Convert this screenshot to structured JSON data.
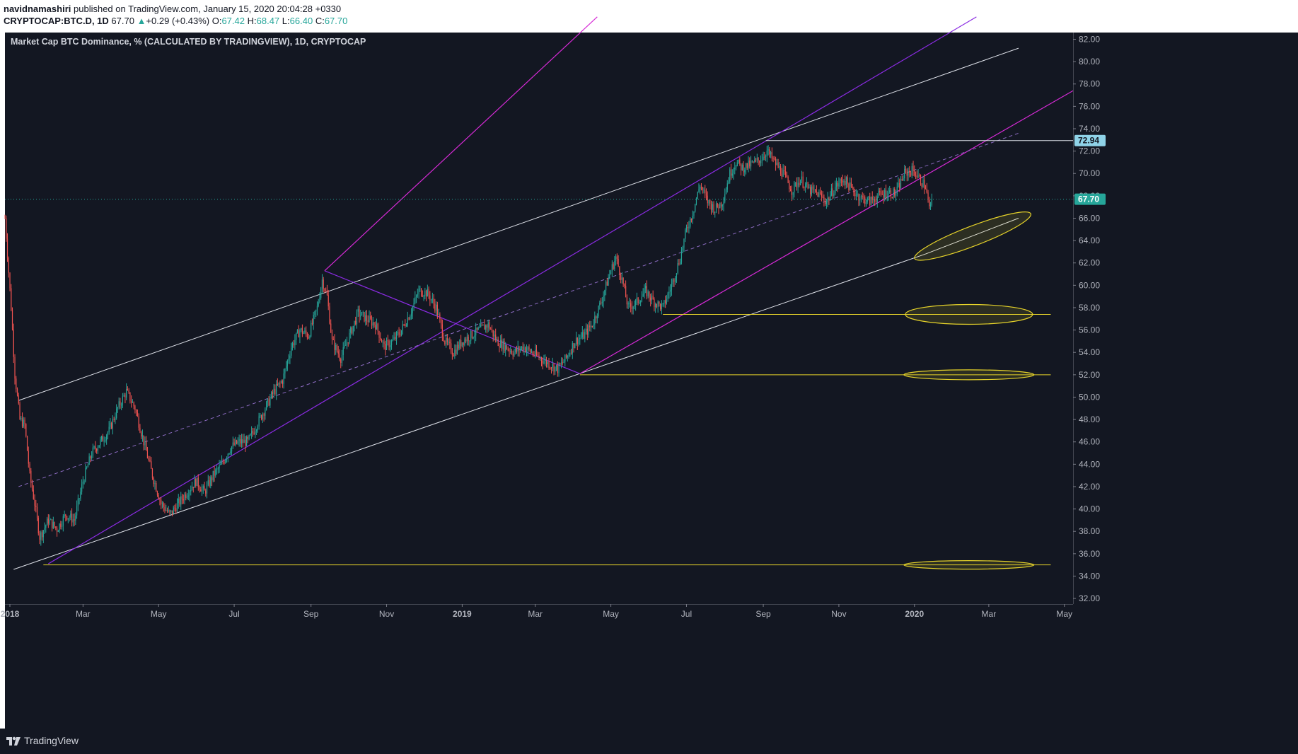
{
  "header": {
    "author": "navidnamashiri",
    "published_text": "published on TradingView.com, January 15, 2020 20:04:28 +0330",
    "symbol": "CRYPTOCAP:BTC.D, 1D",
    "last": "67.70",
    "change": "+0.29 (+0.43%)",
    "up_arrow": "▲",
    "o_label": "O:",
    "o_value": "67.42",
    "h_label": "H:",
    "h_value": "68.47",
    "l_label": "L:",
    "l_value": "66.40",
    "c_label": "C:",
    "c_value": "67.70"
  },
  "footer": {
    "brand": "TradingView",
    "logo_icon": "tradingview-logo-icon"
  },
  "colors": {
    "background": "#131722",
    "up": "#26a69a",
    "down": "#ef5350",
    "axis_text": "#b2b5be",
    "trend_white": "#e0e3eb",
    "pitchfork_magenta": "#d62ad6",
    "pitchfork_purple": "#8a2be2",
    "yellow": "#e6d32a",
    "price_line": "#26a69a",
    "label_high_bg": "#8fd3e8"
  },
  "chart_data": {
    "type": "candlestick",
    "title": "Market Cap BTC Dominance, % (CALCULATED BY TRADINGVIEW), 1D, CRYPTOCAP",
    "x_tick_labels": [
      "2018",
      "Mar",
      "May",
      "Jul",
      "Sep",
      "Nov",
      "2019",
      "Mar",
      "May",
      "Jul",
      "Sep",
      "Nov",
      "2020",
      "Mar",
      "May"
    ],
    "x_tick_dates": [
      "2018-01-01",
      "2018-03-01",
      "2018-05-01",
      "2018-07-01",
      "2018-09-01",
      "2018-11-01",
      "2019-01-01",
      "2019-03-01",
      "2019-05-01",
      "2019-07-01",
      "2019-09-01",
      "2019-11-01",
      "2020-01-01",
      "2020-03-01",
      "2020-05-01"
    ],
    "y_tick_labels": [
      "82.00",
      "80.00",
      "78.00",
      "76.00",
      "74.00",
      "72.00",
      "70.00",
      "68.00",
      "66.00",
      "64.00",
      "62.00",
      "60.00",
      "58.00",
      "56.00",
      "54.00",
      "52.00",
      "50.00",
      "48.00",
      "46.00",
      "44.00",
      "42.00",
      "40.00",
      "38.00",
      "36.00",
      "34.00",
      "32.00"
    ],
    "ylim": [
      31.5,
      82.6
    ],
    "xlim": [
      "2017-12-28",
      "2020-05-08"
    ],
    "close_path": [
      [
        "2017-12-28",
        66.0
      ],
      [
        "2018-01-02",
        58.0
      ],
      [
        "2018-01-05",
        52.0
      ],
      [
        "2018-01-09",
        48.0
      ],
      [
        "2018-01-13",
        47.5
      ],
      [
        "2018-01-17",
        43.0
      ],
      [
        "2018-01-21",
        40.5
      ],
      [
        "2018-01-25",
        37.5
      ],
      [
        "2018-02-01",
        39.0
      ],
      [
        "2018-02-08",
        38.2
      ],
      [
        "2018-02-15",
        39.5
      ],
      [
        "2018-02-22",
        39.0
      ],
      [
        "2018-03-01",
        42.5
      ],
      [
        "2018-03-08",
        45.0
      ],
      [
        "2018-03-15",
        46.0
      ],
      [
        "2018-03-22",
        47.0
      ],
      [
        "2018-03-29",
        49.0
      ],
      [
        "2018-04-05",
        50.5
      ],
      [
        "2018-04-12",
        49.0
      ],
      [
        "2018-04-19",
        46.0
      ],
      [
        "2018-04-26",
        43.0
      ],
      [
        "2018-05-03",
        40.5
      ],
      [
        "2018-05-10",
        39.5
      ],
      [
        "2018-05-17",
        40.5
      ],
      [
        "2018-05-24",
        41.5
      ],
      [
        "2018-05-31",
        42.5
      ],
      [
        "2018-06-07",
        41.5
      ],
      [
        "2018-06-14",
        43.0
      ],
      [
        "2018-06-21",
        44.0
      ],
      [
        "2018-06-28",
        45.5
      ],
      [
        "2018-07-05",
        46.0
      ],
      [
        "2018-07-12",
        46.0
      ],
      [
        "2018-07-19",
        47.5
      ],
      [
        "2018-07-26",
        49.0
      ],
      [
        "2018-08-02",
        50.5
      ],
      [
        "2018-08-09",
        51.5
      ],
      [
        "2018-08-16",
        54.5
      ],
      [
        "2018-08-23",
        56.0
      ],
      [
        "2018-08-30",
        55.5
      ],
      [
        "2018-09-06",
        58.0
      ],
      [
        "2018-09-10",
        60.5
      ],
      [
        "2018-09-14",
        59.0
      ],
      [
        "2018-09-18",
        55.0
      ],
      [
        "2018-09-25",
        53.5
      ],
      [
        "2018-10-02",
        55.5
      ],
      [
        "2018-10-09",
        57.5
      ],
      [
        "2018-10-16",
        57.0
      ],
      [
        "2018-10-23",
        56.5
      ],
      [
        "2018-10-30",
        54.5
      ],
      [
        "2018-11-06",
        55.0
      ],
      [
        "2018-11-13",
        56.0
      ],
      [
        "2018-11-20",
        57.5
      ],
      [
        "2018-11-27",
        59.5
      ],
      [
        "2018-12-04",
        59.3
      ],
      [
        "2018-12-11",
        58.0
      ],
      [
        "2018-12-18",
        55.0
      ],
      [
        "2018-12-25",
        54.0
      ],
      [
        "2019-01-01",
        55.0
      ],
      [
        "2019-01-08",
        55.5
      ],
      [
        "2019-01-15",
        56.0
      ],
      [
        "2019-01-22",
        56.5
      ],
      [
        "2019-01-29",
        55.0
      ],
      [
        "2019-02-05",
        54.5
      ],
      [
        "2019-02-12",
        54.0
      ],
      [
        "2019-02-19",
        54.5
      ],
      [
        "2019-02-26",
        54.0
      ],
      [
        "2019-03-05",
        53.5
      ],
      [
        "2019-03-12",
        53.0
      ],
      [
        "2019-03-19",
        52.5
      ],
      [
        "2019-03-26",
        53.5
      ],
      [
        "2019-04-02",
        55.0
      ],
      [
        "2019-04-09",
        55.5
      ],
      [
        "2019-04-16",
        56.5
      ],
      [
        "2019-04-23",
        58.5
      ],
      [
        "2019-04-30",
        61.0
      ],
      [
        "2019-05-05",
        62.5
      ],
      [
        "2019-05-10",
        60.5
      ],
      [
        "2019-05-15",
        58.0
      ],
      [
        "2019-05-22",
        58.5
      ],
      [
        "2019-05-29",
        59.5
      ],
      [
        "2019-06-05",
        58.5
      ],
      [
        "2019-06-12",
        58.0
      ],
      [
        "2019-06-19",
        60.0
      ],
      [
        "2019-06-26",
        62.5
      ],
      [
        "2019-07-01",
        65.0
      ],
      [
        "2019-07-06",
        66.5
      ],
      [
        "2019-07-12",
        69.0
      ],
      [
        "2019-07-18",
        67.5
      ],
      [
        "2019-07-24",
        66.8
      ],
      [
        "2019-07-30",
        67.5
      ],
      [
        "2019-08-05",
        70.0
      ],
      [
        "2019-08-10",
        71.0
      ],
      [
        "2019-08-15",
        70.5
      ],
      [
        "2019-08-22",
        70.8
      ],
      [
        "2019-08-29",
        71.2
      ],
      [
        "2019-09-04",
        72.0
      ],
      [
        "2019-09-10",
        71.0
      ],
      [
        "2019-09-17",
        70.0
      ],
      [
        "2019-09-24",
        68.5
      ],
      [
        "2019-10-01",
        69.5
      ],
      [
        "2019-10-08",
        68.5
      ],
      [
        "2019-10-15",
        68.2
      ],
      [
        "2019-10-22",
        67.5
      ],
      [
        "2019-10-29",
        68.8
      ],
      [
        "2019-11-05",
        69.5
      ],
      [
        "2019-11-12",
        68.5
      ],
      [
        "2019-11-19",
        67.8
      ],
      [
        "2019-11-26",
        67.5
      ],
      [
        "2019-12-03",
        68.0
      ],
      [
        "2019-12-10",
        68.3
      ],
      [
        "2019-12-17",
        68.2
      ],
      [
        "2019-12-24",
        70.0
      ],
      [
        "2019-12-31",
        70.3
      ],
      [
        "2020-01-05",
        69.5
      ],
      [
        "2020-01-10",
        68.8
      ],
      [
        "2020-01-13",
        66.8
      ],
      [
        "2020-01-15",
        67.7
      ]
    ],
    "last_price": 67.7,
    "last_price_label": "67.70",
    "high_level": 72.94,
    "high_level_label": "72.94"
  }
}
